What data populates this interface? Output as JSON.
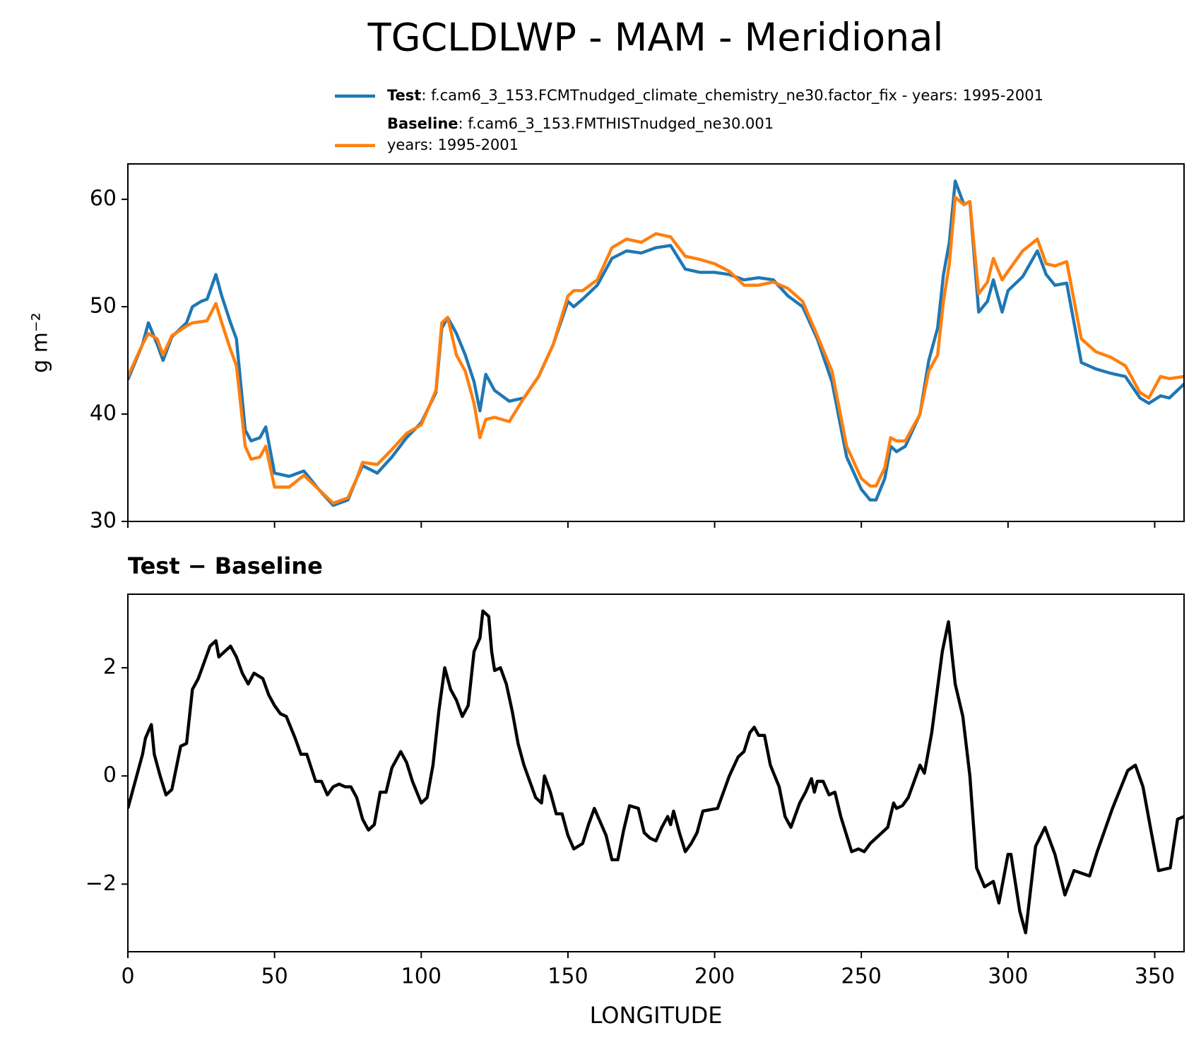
{
  "title": "TGCLDLWP - MAM - Meridional",
  "chart_data": [
    {
      "type": "line",
      "ylabel": "g m⁻²",
      "legend": true,
      "x": [
        0,
        5,
        7,
        10,
        12,
        15,
        20,
        22,
        25,
        27,
        30,
        32,
        35,
        37,
        40,
        42,
        45,
        47,
        50,
        55,
        60,
        65,
        70,
        75,
        78,
        80,
        85,
        90,
        95,
        100,
        105,
        107,
        109,
        112,
        115,
        118,
        120,
        122,
        125,
        130,
        135,
        140,
        145,
        150,
        152,
        155,
        160,
        165,
        170,
        175,
        180,
        185,
        190,
        195,
        200,
        205,
        210,
        215,
        220,
        225,
        230,
        235,
        240,
        245,
        250,
        253,
        255,
        258,
        260,
        262,
        265,
        270,
        273,
        276,
        278,
        280,
        282,
        285,
        287,
        290,
        293,
        295,
        298,
        300,
        305,
        310,
        313,
        316,
        320,
        325,
        330,
        335,
        340,
        345,
        348,
        352,
        355,
        360
      ],
      "series": [
        {
          "name": "Test",
          "detail": [
            ": f.cam6_3_153.FCMTnudged_climate_chemistry_ne30.factor_fix - years: 1995-2001"
          ],
          "color": "#1f77b4",
          "values": [
            43.2,
            46.5,
            48.5,
            46.5,
            45,
            47.2,
            48.5,
            50,
            50.5,
            50.7,
            53,
            51,
            48.5,
            47,
            38.5,
            37.5,
            37.8,
            38.8,
            34.5,
            34.2,
            34.7,
            33,
            31.5,
            32,
            34,
            35.2,
            34.5,
            36,
            37.8,
            39.2,
            42,
            48,
            49,
            47.5,
            45.5,
            43,
            40.3,
            43.7,
            42.2,
            41.2,
            41.5,
            43.5,
            46.5,
            50.5,
            50,
            50.7,
            52,
            54.5,
            55.2,
            55,
            55.5,
            55.7,
            53.5,
            53.2,
            53.2,
            53,
            52.5,
            52.7,
            52.5,
            51,
            50,
            47,
            43,
            36,
            33,
            32,
            32,
            34,
            37,
            36.5,
            37,
            40,
            45,
            48,
            53,
            56,
            61.7,
            59.5,
            59.8,
            49.5,
            50.5,
            52.5,
            49.5,
            51.5,
            52.8,
            55.2,
            53,
            52,
            52.2,
            44.8,
            44.2,
            43.8,
            43.5,
            41.5,
            41,
            41.7,
            41.5,
            42.8
          ]
        },
        {
          "name": "Baseline",
          "detail": [
            ": f.cam6_3_153.FMTHISTnudged_ne30.001",
            "years: 1995-2001"
          ],
          "color": "#ff7f0e",
          "values": [
            43.5,
            46.5,
            47.5,
            47,
            45.5,
            47.3,
            48.2,
            48.5,
            48.6,
            48.7,
            50.3,
            48.5,
            46,
            44.5,
            37,
            35.8,
            36,
            37,
            33.2,
            33.2,
            34.3,
            33,
            31.7,
            32.2,
            34,
            35.5,
            35.3,
            36.7,
            38.2,
            39,
            42.2,
            48.5,
            49,
            45.5,
            44,
            41,
            37.8,
            39.5,
            39.7,
            39.3,
            41.5,
            43.5,
            46.5,
            51,
            51.5,
            51.5,
            52.5,
            55.5,
            56.3,
            56,
            56.8,
            56.5,
            54.7,
            54.4,
            54,
            53.3,
            52,
            52,
            52.3,
            51.7,
            50.5,
            47.3,
            44,
            37,
            34,
            33.3,
            33.3,
            35,
            37.8,
            37.5,
            37.5,
            40,
            44,
            45.5,
            50.5,
            54,
            60.2,
            59.5,
            59.8,
            51.2,
            52.3,
            54.5,
            52.5,
            53.3,
            55.2,
            56.3,
            54,
            53.8,
            54.2,
            47,
            45.8,
            45.3,
            44.5,
            42,
            41.5,
            43.5,
            43.3,
            43.5
          ]
        }
      ],
      "xlim": [
        0,
        360
      ],
      "xticks": [
        0,
        50,
        100,
        150,
        200,
        250,
        300,
        350
      ],
      "xtick_labels": false,
      "ylim": [
        30,
        63.3
      ],
      "yticks": [
        30,
        40,
        50,
        60
      ]
    },
    {
      "type": "line",
      "title": "Test − Baseline",
      "xlabel": "LONGITUDE",
      "x": [
        0,
        3,
        5,
        6,
        8,
        9,
        11,
        13,
        15,
        18,
        20,
        22,
        24,
        26,
        28,
        30,
        31,
        33,
        35,
        37,
        39,
        41,
        43,
        46,
        48,
        50,
        52,
        54,
        57,
        59,
        61,
        64,
        66,
        68,
        70,
        72,
        74,
        76,
        78,
        80,
        82,
        84,
        86,
        88,
        90,
        92,
        93,
        95,
        97,
        100,
        102,
        104,
        106,
        108,
        110,
        112,
        114,
        116,
        118,
        120,
        121,
        123,
        124,
        125,
        127,
        129,
        131,
        133,
        135,
        137,
        139,
        141,
        142,
        144,
        146,
        148,
        150,
        152,
        155,
        157,
        159,
        161,
        163,
        165,
        167,
        169,
        171,
        174,
        176,
        178,
        180,
        182,
        184,
        185,
        186,
        188,
        190,
        192,
        194,
        196,
        201,
        205,
        208,
        210,
        212,
        213.5,
        215,
        217,
        219,
        222,
        224,
        226,
        229,
        231,
        233,
        234,
        235,
        237,
        239,
        241,
        243,
        245,
        246.7,
        249,
        251,
        253,
        255,
        257,
        259,
        261,
        262,
        264,
        266,
        268,
        270,
        271.5,
        274,
        277.6,
        279.7,
        282,
        284.6,
        287,
        289.3,
        292,
        295,
        296.9,
        300,
        301,
        304,
        306,
        309.4,
        312.6,
        316,
        319.4,
        322.5,
        327.8,
        330.4,
        335.6,
        340.8,
        343.4,
        346,
        348.7,
        351.3,
        355.3,
        357.8,
        360
      ],
      "series": [
        {
          "color": "#000000",
          "values": [
            -0.6,
            0,
            0.4,
            0.7,
            0.95,
            0.4,
            0,
            -0.35,
            -0.25,
            0.55,
            0.6,
            1.6,
            1.8,
            2.1,
            2.4,
            2.5,
            2.2,
            2.3,
            2.4,
            2.2,
            1.9,
            1.7,
            1.9,
            1.8,
            1.5,
            1.3,
            1.15,
            1.1,
            0.7,
            0.4,
            0.4,
            -0.1,
            -0.1,
            -0.35,
            -0.2,
            -0.15,
            -0.2,
            -0.2,
            -0.4,
            -0.8,
            -1,
            -0.9,
            -0.3,
            -0.3,
            0.15,
            0.35,
            0.45,
            0.25,
            -0.1,
            -0.5,
            -0.4,
            0.2,
            1.2,
            2,
            1.6,
            1.4,
            1.1,
            1.3,
            2.3,
            2.55,
            3.05,
            2.95,
            2.3,
            1.95,
            2,
            1.7,
            1.2,
            0.6,
            0.2,
            -0.1,
            -0.4,
            -0.5,
            0,
            -0.3,
            -0.7,
            -0.7,
            -1.1,
            -1.35,
            -1.25,
            -0.9,
            -0.6,
            -0.85,
            -1.1,
            -1.55,
            -1.55,
            -1.0,
            -0.55,
            -0.6,
            -1.05,
            -1.15,
            -1.2,
            -0.95,
            -0.75,
            -0.9,
            -0.65,
            -1.05,
            -1.4,
            -1.25,
            -1.05,
            -0.65,
            -0.6,
            0,
            0.35,
            0.45,
            0.8,
            0.9,
            0.75,
            0.75,
            0.2,
            -0.2,
            -0.75,
            -0.95,
            -0.5,
            -0.3,
            -0.05,
            -0.3,
            -0.1,
            -0.1,
            -0.35,
            -0.3,
            -0.75,
            -1.1,
            -1.4,
            -1.35,
            -1.4,
            -1.25,
            -1.15,
            -1.05,
            -0.95,
            -0.5,
            -0.6,
            -0.55,
            -0.4,
            -0.1,
            0.2,
            0.05,
            0.8,
            2.3,
            2.85,
            1.7,
            1.1,
            0,
            -1.7,
            -2.05,
            -1.95,
            -2.35,
            -1.45,
            -1.45,
            -2.5,
            -2.9,
            -1.3,
            -0.95,
            -1.45,
            -2.2,
            -1.75,
            -1.85,
            -1.4,
            -0.6,
            0.1,
            0.2,
            -0.2,
            -1,
            -1.75,
            -1.7,
            -0.8,
            -0.75
          ]
        }
      ],
      "xlim": [
        0,
        360
      ],
      "xticks": [
        0,
        50,
        100,
        150,
        200,
        250,
        300,
        350
      ],
      "xtick_labels": true,
      "ylim": [
        -3.25,
        3.36
      ],
      "yticks": [
        {
          "value": -2,
          "label": "−2"
        },
        0,
        2
      ]
    }
  ]
}
